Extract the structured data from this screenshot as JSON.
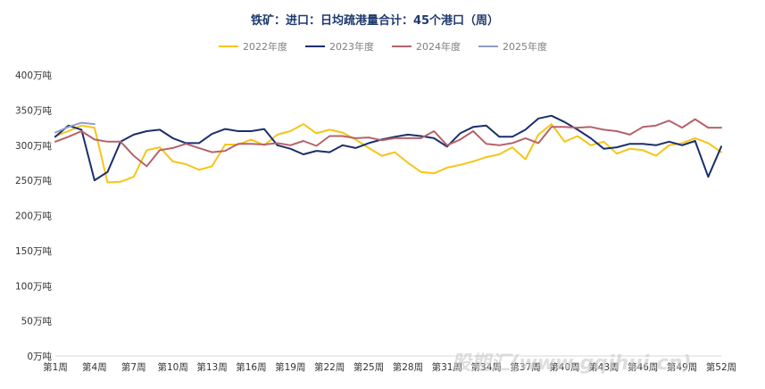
{
  "chart_data": {
    "type": "line",
    "title": "铁矿：进口：日均疏港量合计：45个港口（周）",
    "xlabel": "",
    "ylabel": "",
    "ylim": [
      0,
      400
    ],
    "y_ticks": [
      "0万吨",
      "50万吨",
      "100万吨",
      "150万吨",
      "200万吨",
      "250万吨",
      "300万吨",
      "350万吨",
      "400万吨"
    ],
    "y_tick_values": [
      0,
      50,
      100,
      150,
      200,
      250,
      300,
      350,
      400
    ],
    "x_ticks": [
      "第1周",
      "第4周",
      "第7周",
      "第10周",
      "第13周",
      "第16周",
      "第19周",
      "第22周",
      "第25周",
      "第28周",
      "第31周",
      "第34周",
      "第37周",
      "第40周",
      "第43周",
      "第46周",
      "第49周",
      "第52周"
    ],
    "x_tick_weeks": [
      1,
      4,
      7,
      10,
      13,
      16,
      19,
      22,
      25,
      28,
      31,
      34,
      37,
      40,
      43,
      46,
      49,
      52
    ],
    "legend_position": "top",
    "grid": false,
    "series": [
      {
        "name": "2022年度",
        "color": "#f5c518",
        "values": [
          313,
          320,
          328,
          325,
          247,
          248,
          255,
          293,
          297,
          277,
          273,
          265,
          270,
          301,
          301,
          308,
          300,
          315,
          320,
          330,
          317,
          322,
          318,
          308,
          296,
          285,
          290,
          275,
          262,
          260,
          268,
          272,
          277,
          283,
          287,
          297,
          280,
          315,
          330,
          305,
          313,
          300,
          305,
          288,
          295,
          293,
          285,
          300,
          303,
          310,
          303,
          290
        ]
      },
      {
        "name": "2023年度",
        "color": "#1b2f6b",
        "values": [
          312,
          328,
          322,
          250,
          262,
          305,
          315,
          320,
          322,
          310,
          303,
          303,
          316,
          323,
          320,
          320,
          323,
          300,
          295,
          287,
          292,
          290,
          300,
          296,
          303,
          308,
          312,
          315,
          313,
          310,
          298,
          317,
          326,
          328,
          312,
          312,
          322,
          338,
          342,
          333,
          322,
          310,
          295,
          297,
          302,
          302,
          300,
          305,
          300,
          306,
          255,
          298
        ]
      },
      {
        "name": "2024年度",
        "color": "#b5636b",
        "values": [
          305,
          312,
          320,
          308,
          305,
          305,
          285,
          270,
          293,
          296,
          302,
          296,
          290,
          292,
          302,
          302,
          301,
          303,
          300,
          306,
          299,
          313,
          313,
          310,
          311,
          307,
          310,
          310,
          310,
          320,
          300,
          308,
          320,
          302,
          300,
          303,
          310,
          303,
          326,
          326,
          325,
          326,
          322,
          320,
          315,
          326,
          328,
          335,
          325,
          337,
          325,
          325
        ]
      },
      {
        "name": "2025年度",
        "color": "#8f9dc9",
        "values": [
          318,
          326,
          332,
          330
        ]
      }
    ]
  },
  "watermark": "股期汇(www.gqihui.cn)"
}
